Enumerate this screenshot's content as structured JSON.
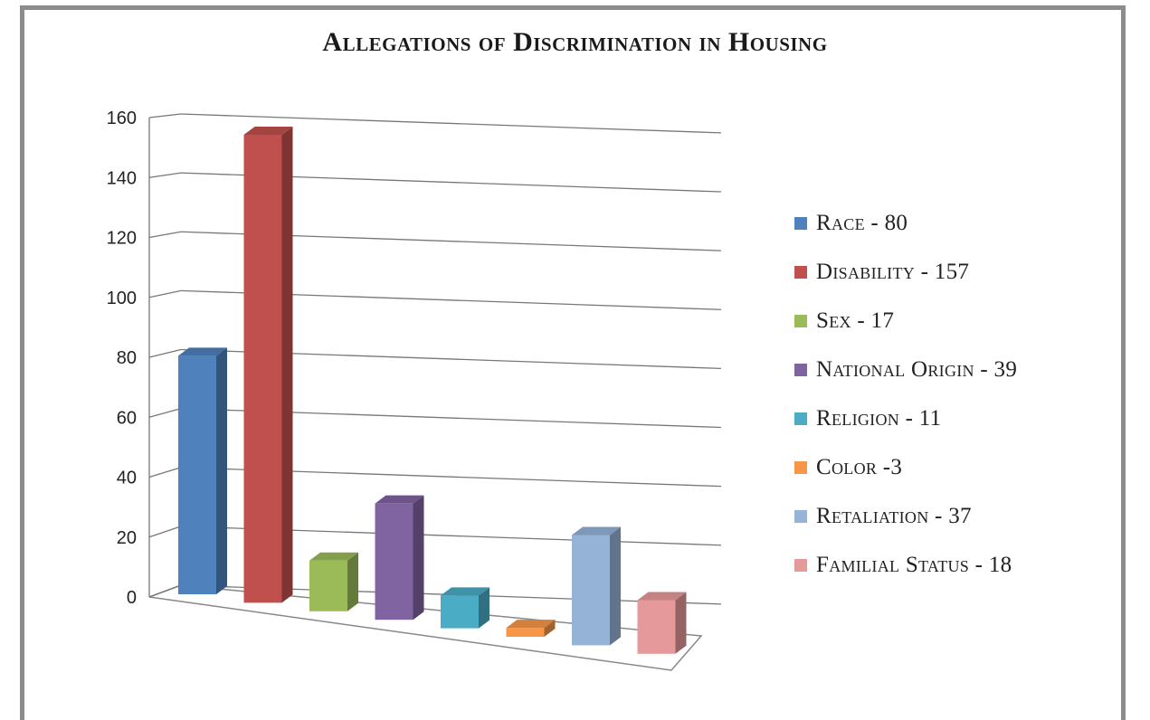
{
  "chart_data": {
    "type": "bar",
    "title": "Allegations of Discrimination in Housing",
    "categories": [
      "Race - 80",
      "Disability - 157",
      "Sex - 17",
      "National Origin - 39",
      "Religion - 11",
      "Color -3",
      "Retaliation - 37",
      "Familial Status - 18"
    ],
    "values": [
      80,
      157,
      17,
      39,
      11,
      3,
      37,
      18
    ],
    "colors": [
      "#4f81bd",
      "#c0504d",
      "#9bbb59",
      "#8064a2",
      "#4bacc6",
      "#f79646",
      "#95b3d7",
      "#e6999a"
    ],
    "ylim": [
      0,
      160
    ],
    "yticks": [
      "0",
      "20",
      "40",
      "60",
      "80",
      "100",
      "120",
      "140",
      "160"
    ],
    "xlabel": "",
    "ylabel": "",
    "grid": true,
    "legend_position": "right",
    "style": "3d-column"
  }
}
